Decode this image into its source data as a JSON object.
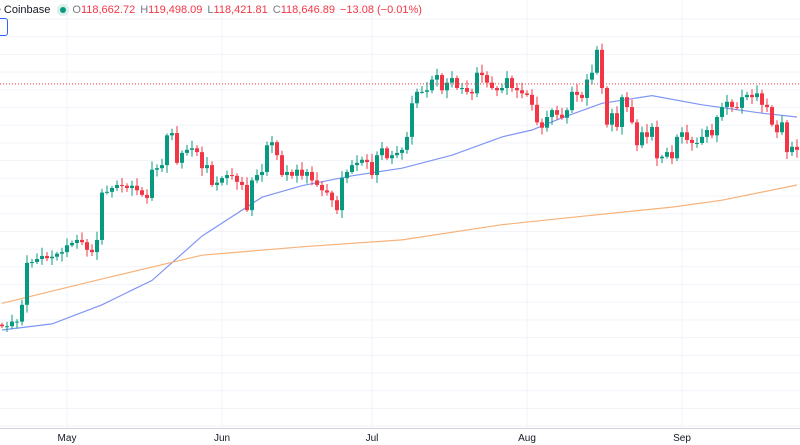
{
  "legend": {
    "exchange": "• Coinbase",
    "open_label": "O",
    "open": "118,662.72",
    "high_label": "H",
    "high": "119,498.09",
    "low_label": "L",
    "low": "118,421.81",
    "close_label": "C",
    "close": "118,646.89",
    "change": "−13.08 (−0.01%)"
  },
  "colors": {
    "up": "#089981",
    "down": "#f23645",
    "ma_fast": "#7f95f5",
    "ma_slow": "#f7b27a",
    "price_line": "#f23645",
    "grid": "#f0f3fa"
  },
  "chart_data": {
    "type": "candlestick",
    "title": "",
    "price_line": 118646.89,
    "xticks": [
      "May",
      "Jun",
      "Jul",
      "Aug",
      "Sep"
    ],
    "grid": true,
    "candles_close": [
      [
        "Apr 18",
        86900
      ],
      [
        "Apr 19",
        86900
      ],
      [
        "Apr 20",
        87500
      ],
      [
        "Apr 21",
        87500
      ],
      [
        "Apr 22",
        89700
      ],
      [
        "Apr 23",
        95200
      ],
      [
        "Apr 24",
        95300
      ],
      [
        "Apr 25",
        95700
      ],
      [
        "Apr 26",
        96100
      ],
      [
        "Apr 27",
        95800
      ],
      [
        "Apr 28",
        96000
      ],
      [
        "Apr 29",
        96400
      ],
      [
        "Apr 30",
        96600
      ],
      [
        "May 1",
        97500
      ],
      [
        "May 2",
        97800
      ],
      [
        "May 3",
        98200
      ],
      [
        "May 4",
        97900
      ],
      [
        "May 5",
        96900
      ],
      [
        "May 6",
        96600
      ],
      [
        "May 7",
        98200
      ],
      [
        "May 8",
        104400
      ],
      [
        "May 9",
        104500
      ],
      [
        "May 10",
        105000
      ],
      [
        "May 11",
        105400
      ],
      [
        "May 12",
        105300
      ],
      [
        "May 13",
        105000
      ],
      [
        "May 14",
        105300
      ],
      [
        "May 15",
        104700
      ],
      [
        "May 16",
        104100
      ],
      [
        "May 17",
        103700
      ],
      [
        "May 18",
        107400
      ],
      [
        "May 19",
        107600
      ],
      [
        "May 20",
        108000
      ],
      [
        "May 21",
        111900
      ],
      [
        "May 22",
        112200
      ],
      [
        "May 23",
        108300
      ],
      [
        "May 24",
        109600
      ],
      [
        "May 25",
        110000
      ],
      [
        "May 26",
        110200
      ],
      [
        "May 27",
        109700
      ],
      [
        "May 28",
        107600
      ],
      [
        "May 29",
        108000
      ],
      [
        "May 30",
        105400
      ],
      [
        "May 31",
        105700
      ],
      [
        "Jun 1",
        106300
      ],
      [
        "Jun 2",
        106700
      ],
      [
        "Jun 3",
        106600
      ],
      [
        "Jun 4",
        105800
      ],
      [
        "Jun 5",
        105400
      ],
      [
        "Jun 6",
        102100
      ],
      [
        "Jun 7",
        106000
      ],
      [
        "Jun 8",
        106700
      ],
      [
        "Jun 9",
        107100
      ],
      [
        "Jun 10",
        110600
      ],
      [
        "Jun 11",
        111000
      ],
      [
        "Jun 12",
        109300
      ],
      [
        "Jun 13",
        106700
      ],
      [
        "Jun 14",
        107100
      ],
      [
        "Jun 15",
        106600
      ],
      [
        "Jun 16",
        107400
      ],
      [
        "Jun 17",
        106600
      ],
      [
        "Jun 18",
        107100
      ],
      [
        "Jun 19",
        106000
      ],
      [
        "Jun 20",
        105400
      ],
      [
        "Jun 21",
        104700
      ],
      [
        "Jun 22",
        104400
      ],
      [
        "Jun 23",
        103400
      ],
      [
        "Jun 24",
        102100
      ],
      [
        "Jun 25",
        106300
      ],
      [
        "Jun 26",
        107100
      ],
      [
        "Jun 27",
        108000
      ],
      [
        "Jun 28",
        108300
      ],
      [
        "Jun 29",
        108700
      ],
      [
        "Jun 30",
        108400
      ],
      [
        "Jul 1",
        106700
      ],
      [
        "Jul 2",
        109300
      ],
      [
        "Jul 3",
        110200
      ],
      [
        "Jul 4",
        108900
      ],
      [
        "Jul 5",
        109300
      ],
      [
        "Jul 6",
        109600
      ],
      [
        "Jul 7",
        110000
      ],
      [
        "Jul 8",
        111700
      ],
      [
        "Jul 9",
        116100
      ],
      [
        "Jul 10",
        117600
      ],
      [
        "Jul 11",
        117600
      ],
      [
        "Jul 12",
        117800
      ],
      [
        "Jul 13",
        119200
      ],
      [
        "Jul 14",
        119800
      ],
      [
        "Jul 15",
        117800
      ],
      [
        "Jul 16",
        118800
      ],
      [
        "Jul 17",
        119400
      ],
      [
        "Jul 18",
        118100
      ],
      [
        "Jul 19",
        118100
      ],
      [
        "Jul 20",
        117600
      ],
      [
        "Jul 21",
        117400
      ],
      [
        "Jul 22",
        120100
      ],
      [
        "Jul 23",
        119800
      ],
      [
        "Jul 24",
        118800
      ],
      [
        "Jul 25",
        118100
      ],
      [
        "Jul 26",
        117800
      ],
      [
        "Jul 27",
        118100
      ],
      [
        "Jul 28",
        119400
      ],
      [
        "Jul 29",
        118100
      ],
      [
        "Jul 30",
        117800
      ],
      [
        "Jul 31",
        117400
      ],
      [
        "Aug 1",
        117200
      ],
      [
        "Aug 2",
        115900
      ],
      [
        "Aug 3",
        113600
      ],
      [
        "Aug 4",
        112900
      ],
      [
        "Aug 5",
        114300
      ],
      [
        "Aug 6",
        115200
      ],
      [
        "Aug 7",
        114600
      ],
      [
        "Aug 8",
        114200
      ],
      [
        "Aug 9",
        115200
      ],
      [
        "Aug 10",
        117600
      ],
      [
        "Aug 11",
        117200
      ],
      [
        "Aug 12",
        116800
      ],
      [
        "Aug 13",
        119200
      ],
      [
        "Aug 14",
        120100
      ],
      [
        "Aug 15",
        123100
      ],
      [
        "Aug 16",
        118100
      ],
      [
        "Aug 17",
        113300
      ],
      [
        "Aug 18",
        114800
      ],
      [
        "Aug 19",
        113000
      ],
      [
        "Aug 20",
        116900
      ],
      [
        "Aug 21",
        115600
      ],
      [
        "Aug 22",
        113600
      ],
      [
        "Aug 23",
        110600
      ],
      [
        "Aug 24",
        112300
      ],
      [
        "Aug 25",
        111700
      ],
      [
        "Aug 26",
        113000
      ],
      [
        "Aug 27",
        108900
      ],
      [
        "Aug 28",
        109100
      ],
      [
        "Aug 29",
        109700
      ],
      [
        "Aug 30",
        108900
      ],
      [
        "Aug 31",
        111700
      ],
      [
        "Sep 1",
        112300
      ],
      [
        "Sep 2",
        111300
      ],
      [
        "Sep 3",
        110900
      ],
      [
        "Sep 4",
        110900
      ],
      [
        "Sep 5",
        111700
      ],
      [
        "Sep 6",
        112600
      ],
      [
        "Sep 7",
        111900
      ],
      [
        "Sep 8",
        114300
      ],
      [
        "Sep 9",
        115600
      ],
      [
        "Sep 10",
        116300
      ],
      [
        "Sep 11",
        115600
      ],
      [
        "Sep 12",
        115500
      ],
      [
        "Sep 13",
        116900
      ],
      [
        "Sep 14",
        117200
      ],
      [
        "Sep 15",
        116900
      ],
      [
        "Sep 16",
        117400
      ],
      [
        "Sep 17",
        115900
      ],
      [
        "Sep 18",
        115600
      ],
      [
        "Sep 19",
        113300
      ],
      [
        "Sep 20",
        112300
      ],
      [
        "Sep 21",
        113600
      ],
      [
        "Sep 22",
        109700
      ],
      [
        "Sep 23",
        110400
      ],
      [
        "Sep 24",
        110000
      ]
    ],
    "series": [
      {
        "color_key": "ma_fast",
        "points": [
          [
            "Apr 18",
            86400
          ],
          [
            "Apr 28",
            87200
          ],
          [
            "May 8",
            89700
          ],
          [
            "May 18",
            92900
          ],
          [
            "May 28",
            98700
          ],
          [
            "Jun 9",
            103800
          ],
          [
            "Jun 17",
            105300
          ],
          [
            "Jun 27",
            106600
          ],
          [
            "Jul 7",
            107600
          ],
          [
            "Jul 17",
            109300
          ],
          [
            "Jul 27",
            111700
          ],
          [
            "Aug 2",
            112600
          ],
          [
            "Aug 8",
            114200
          ],
          [
            "Aug 16",
            116100
          ],
          [
            "Aug 26",
            117100
          ],
          [
            "Sep 5",
            115900
          ],
          [
            "Sep 17",
            114800
          ],
          [
            "Sep 24",
            114300
          ]
        ]
      },
      {
        "color_key": "ma_slow",
        "points": [
          [
            "Apr 18",
            89900
          ],
          [
            "May 8",
            93100
          ],
          [
            "May 28",
            96200
          ],
          [
            "Jun 17",
            97300
          ],
          [
            "Jul 7",
            98200
          ],
          [
            "Jul 27",
            100200
          ],
          [
            "Aug 12",
            101300
          ],
          [
            "Aug 30",
            102500
          ],
          [
            "Sep 9",
            103400
          ],
          [
            "Sep 24",
            105400
          ]
        ]
      }
    ]
  }
}
